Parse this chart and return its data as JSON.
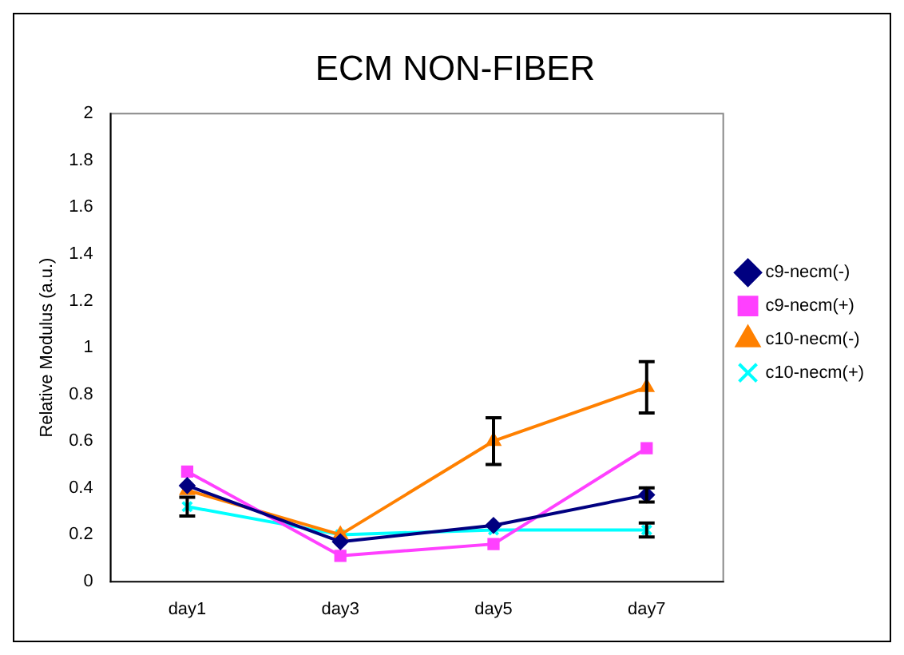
{
  "chart_data": {
    "type": "line",
    "title": "ECM NON-FIBER",
    "ylabel": "Relative Modulus (a.u.)",
    "categories": [
      "day1",
      "day3",
      "day5",
      "day7"
    ],
    "series": [
      {
        "name": "c9-necm(-)",
        "color": "#000080",
        "marker": "diamond",
        "values": [
          0.41,
          0.17,
          0.24,
          0.37
        ],
        "errors": [
          null,
          null,
          null,
          0.03
        ]
      },
      {
        "name": "c9-necm(+)",
        "color": "#ff40ff",
        "marker": "square",
        "values": [
          0.47,
          0.11,
          0.16,
          0.57
        ],
        "errors": [
          null,
          null,
          null,
          null
        ]
      },
      {
        "name": "c10-necm(-)",
        "color": "#ff8000",
        "marker": "triangle",
        "values": [
          0.39,
          0.2,
          0.6,
          0.83
        ],
        "errors": [
          null,
          null,
          0.1,
          0.11
        ]
      },
      {
        "name": "c10-necm(+)",
        "color": "#00ffff",
        "marker": "cross",
        "values": [
          0.32,
          0.2,
          0.22,
          0.22
        ],
        "errors": [
          0.04,
          null,
          null,
          0.03
        ]
      }
    ],
    "ylim": [
      0,
      2
    ],
    "yticks": [
      0,
      0.2,
      0.4,
      0.6,
      0.8,
      1,
      1.2,
      1.4,
      1.6,
      1.8,
      2
    ],
    "grid": false,
    "legend": "right"
  }
}
